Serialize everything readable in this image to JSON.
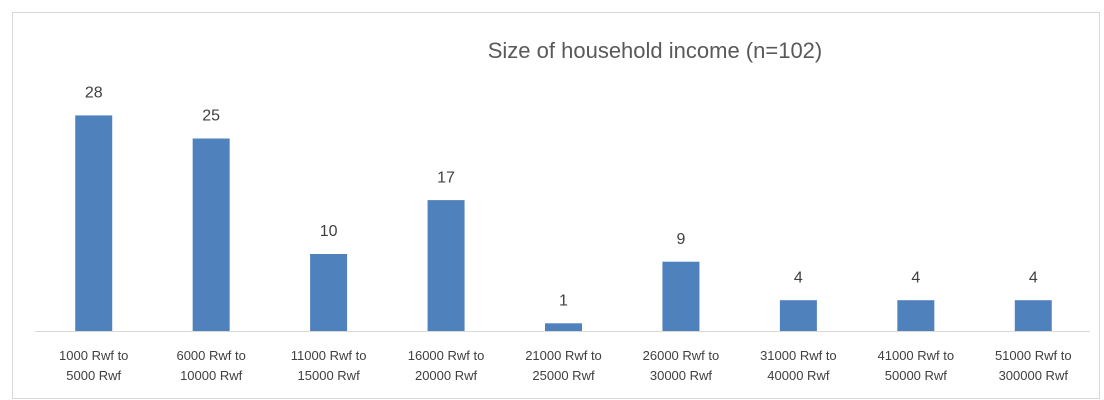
{
  "chart_data": {
    "type": "bar",
    "title": "Size of household income (n=102)",
    "categories": [
      "1000 Rwf to 5000 Rwf",
      "6000 Rwf to 10000 Rwf",
      "11000 Rwf to 15000 Rwf",
      "16000 Rwf to 20000 Rwf",
      "21000 Rwf to 25000 Rwf",
      "26000 Rwf to 30000 Rwf",
      "31000 Rwf to 40000 Rwf",
      "41000 Rwf to 50000 Rwf",
      "51000 Rwf to 300000 Rwf"
    ],
    "values": [
      28,
      25,
      10,
      17,
      1,
      9,
      4,
      4,
      4
    ],
    "color": "#4f81bd",
    "ylim": [
      0,
      30
    ]
  }
}
